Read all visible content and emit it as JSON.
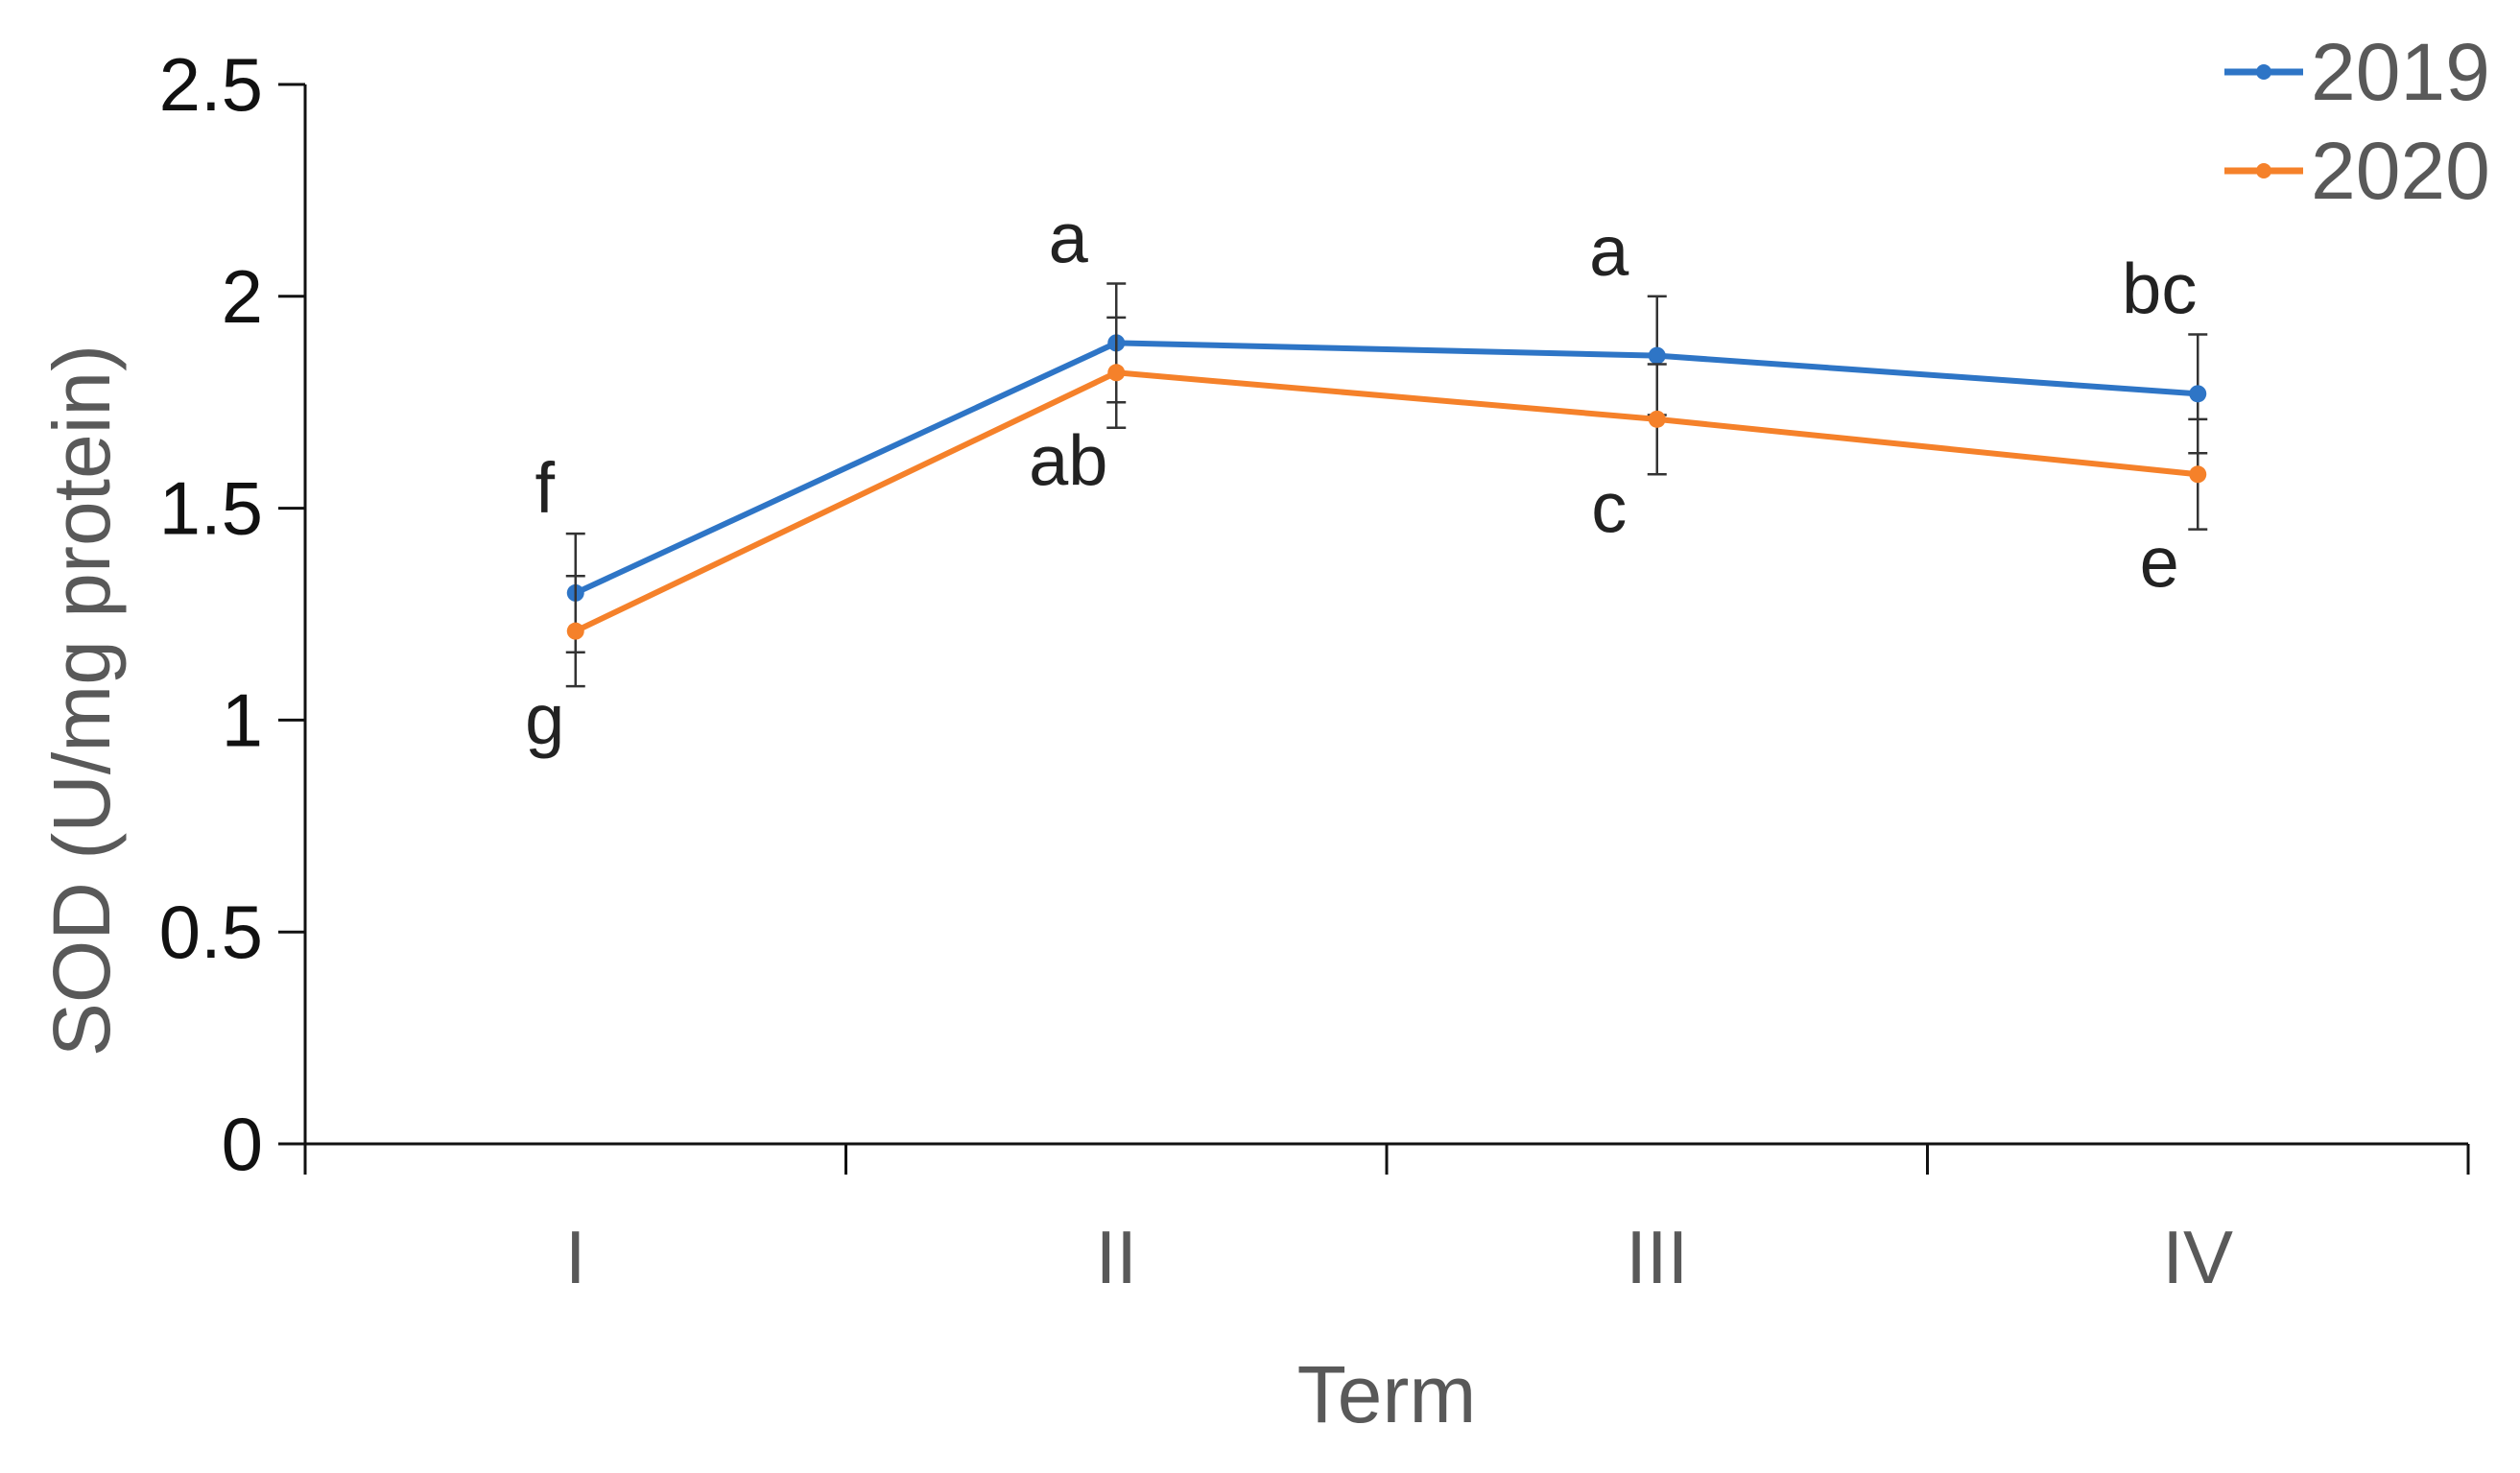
{
  "chart_data": {
    "type": "line",
    "title": "",
    "xlabel": "Term",
    "ylabel": "SOD (U/mg protein)",
    "categories": [
      "I",
      "II",
      "III",
      "IV"
    ],
    "ylim": [
      0,
      2.5
    ],
    "yticks": [
      "0",
      "0.5",
      "1",
      "1.5",
      "2",
      "2.5"
    ],
    "grid": false,
    "legend_position": "top-right",
    "series": [
      {
        "name": "2019",
        "color": "#2e75c6",
        "values": [
          1.3,
          1.89,
          1.86,
          1.77
        ],
        "errors": [
          0.14,
          0.14,
          0.14,
          0.14
        ],
        "labels": [
          "f",
          "a",
          "a",
          "bc"
        ]
      },
      {
        "name": "2020",
        "color": "#f5812a",
        "values": [
          1.21,
          1.82,
          1.71,
          1.58
        ],
        "errors": [
          0.13,
          0.13,
          0.13,
          0.13
        ],
        "labels": [
          "g",
          "ab",
          "c",
          "e"
        ]
      }
    ]
  }
}
